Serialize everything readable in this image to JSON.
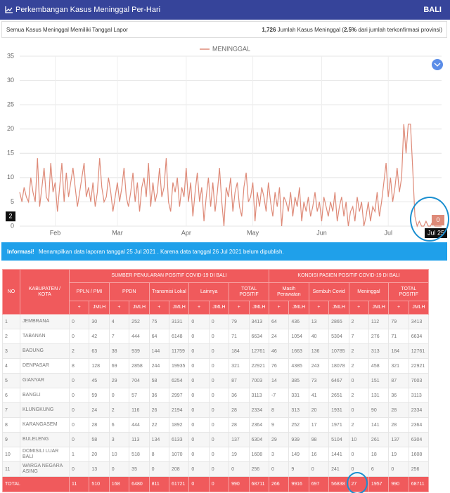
{
  "header": {
    "title": "Perkembangan Kasus Meninggal Per-Hari",
    "region": "BALI"
  },
  "summary": {
    "left": "Semua Kasus Meninggal Memiliki Tanggal Lapor",
    "total": "1,726",
    "total_text": "Jumlah Kasus Meninggal (",
    "percent": "2.5%",
    "percent_text": "dari jumlah terkonfirmasi provinsi)"
  },
  "chart_data": {
    "type": "line",
    "grid": true,
    "categories": [
      null,
      null,
      null,
      null,
      null,
      null,
      null,
      null,
      null,
      null,
      null,
      null,
      null,
      null,
      null,
      null,
      "Feb",
      null,
      null,
      null,
      null,
      null,
      null,
      null,
      null,
      null,
      null,
      null,
      null,
      null,
      null,
      null,
      null,
      null,
      null,
      null,
      null,
      null,
      null,
      null,
      null,
      null,
      null,
      null,
      "Mar",
      null,
      null,
      null,
      null,
      null,
      null,
      null,
      null,
      null,
      null,
      null,
      null,
      null,
      null,
      null,
      null,
      null,
      null,
      null,
      null,
      null,
      null,
      null,
      null,
      null,
      null,
      null,
      null,
      null,
      null,
      "Apr",
      null,
      null,
      null,
      null,
      null,
      null,
      null,
      null,
      null,
      null,
      null,
      null,
      null,
      null,
      null,
      null,
      null,
      null,
      null,
      null,
      null,
      null,
      null,
      null,
      null,
      null,
      null,
      null,
      null,
      "May",
      null,
      null,
      null,
      null,
      null,
      null,
      null,
      null,
      null,
      null,
      null,
      null,
      null,
      null,
      null,
      null,
      null,
      null,
      null,
      null,
      null,
      null,
      null,
      null,
      null,
      null,
      null,
      null,
      null,
      null,
      "Jun",
      null,
      null,
      null,
      null,
      null,
      null,
      null,
      null,
      null,
      null,
      null,
      null,
      null,
      null,
      null,
      null,
      null,
      null,
      null,
      null,
      null,
      null,
      null,
      null,
      null,
      null,
      null,
      null,
      null,
      "Jul",
      null,
      null,
      null,
      null,
      null,
      null,
      null,
      null,
      null,
      null,
      null,
      null,
      null,
      null,
      null,
      null,
      null,
      null,
      null,
      null,
      null,
      null,
      null,
      null
    ],
    "series": [
      {
        "name": "MENINGGAL",
        "color": "#de8a78",
        "values": [
          7,
          5,
          8,
          6,
          5,
          10,
          7,
          5,
          14,
          4,
          8,
          12,
          6,
          5,
          13,
          7,
          9,
          3,
          8,
          13,
          5,
          11,
          6,
          9,
          12,
          8,
          4,
          7,
          10,
          13,
          6,
          8,
          5,
          9,
          4,
          7,
          14,
          8,
          5,
          6,
          10,
          7,
          3,
          6,
          9,
          5,
          8,
          12,
          6,
          4,
          7,
          11,
          5,
          9,
          3,
          8,
          10,
          6,
          13,
          4,
          9,
          5,
          7,
          12,
          6,
          8,
          14,
          5,
          3,
          9,
          7,
          10,
          4,
          8,
          6,
          12,
          5,
          9,
          2,
          7,
          11,
          5,
          8,
          1,
          6,
          10,
          4,
          9,
          3,
          7,
          12,
          5,
          0,
          8,
          6,
          10,
          3,
          7,
          9,
          4,
          2,
          8,
          11,
          5,
          6,
          9,
          1,
          7,
          4,
          8,
          6,
          3,
          9,
          5,
          2,
          7,
          4,
          8,
          0,
          6,
          5,
          3,
          7,
          2,
          6,
          4,
          8,
          1,
          5,
          3,
          6,
          2,
          4,
          7,
          3,
          5,
          1,
          6,
          4,
          2,
          5,
          3,
          7,
          1,
          4,
          6,
          2,
          5,
          0,
          3,
          4,
          1,
          6,
          3,
          5,
          0,
          2,
          5,
          1,
          4,
          3,
          7,
          2,
          5,
          9,
          13,
          6,
          10,
          5,
          8,
          12,
          7,
          10,
          21,
          15,
          21,
          21,
          12,
          2,
          0,
          1,
          0,
          0,
          1,
          0,
          0,
          1,
          0,
          0,
          0,
          0
        ]
      }
    ],
    "ylim": [
      0,
      35
    ],
    "yticks": [
      0,
      5,
      10,
      15,
      20,
      25,
      30,
      35
    ],
    "tooltip": {
      "label": "Jul 25",
      "value": 0
    },
    "crosshair_y": 2
  },
  "info": {
    "label": "Informasi!",
    "text": "Menampilkan data laporan tanggal 25 Jul 2021 . Karena data tanggal 26 Jul 2021 belum dipublish."
  },
  "table": {
    "no": "NO",
    "name": "KABUPATEN / KOTA",
    "groups": [
      "SUMBER PENULARAN POSITIF COVID-19 DI BALI",
      "KONDISI PASIEN POSITIF COVID-19 DI BALI"
    ],
    "subheaders": [
      "PPLN / PMI",
      "PPDN",
      "Transmisi Lokal",
      "Lainnya",
      "TOTAL POSITIF",
      "Masih Perawatan",
      "Sembuh Covid",
      "Meninggal",
      "TOTAL POSITIF"
    ],
    "plus": "+",
    "jmlh": "JMLH",
    "rows": [
      [
        1,
        "JEMBRANA",
        0,
        30,
        4,
        252,
        75,
        3131,
        0,
        0,
        79,
        3413,
        64,
        436,
        13,
        2865,
        2,
        112,
        79,
        3413
      ],
      [
        2,
        "TABANAN",
        0,
        42,
        7,
        444,
        64,
        6148,
        0,
        0,
        71,
        6634,
        24,
        1054,
        40,
        5304,
        7,
        276,
        71,
        6634
      ],
      [
        3,
        "BADUNG",
        2,
        63,
        38,
        939,
        144,
        11759,
        0,
        0,
        184,
        12761,
        46,
        1663,
        136,
        10785,
        2,
        313,
        184,
        12761
      ],
      [
        4,
        "DENPASAR",
        8,
        128,
        69,
        2858,
        244,
        19935,
        0,
        0,
        321,
        22921,
        76,
        4385,
        243,
        18078,
        2,
        458,
        321,
        22921
      ],
      [
        5,
        "GIANYAR",
        0,
        45,
        29,
        704,
        58,
        6254,
        0,
        0,
        87,
        7003,
        14,
        385,
        73,
        6467,
        0,
        151,
        87,
        7003
      ],
      [
        6,
        "BANGLI",
        0,
        59,
        0,
        57,
        36,
        2997,
        0,
        0,
        36,
        3113,
        -7,
        331,
        41,
        2651,
        2,
        131,
        36,
        3113
      ],
      [
        7,
        "KLUNGKUNG",
        0,
        24,
        2,
        116,
        26,
        2194,
        0,
        0,
        28,
        2334,
        8,
        313,
        20,
        1931,
        0,
        90,
        28,
        2334
      ],
      [
        8,
        "KARANGASEM",
        0,
        28,
        6,
        444,
        22,
        1892,
        0,
        0,
        28,
        2364,
        9,
        252,
        17,
        1971,
        2,
        141,
        28,
        2364
      ],
      [
        9,
        "BULELENG",
        0,
        58,
        3,
        113,
        134,
        6133,
        0,
        0,
        137,
        6304,
        29,
        939,
        98,
        5104,
        10,
        261,
        137,
        6304
      ],
      [
        10,
        "DOMISILI LUAR BALI",
        1,
        20,
        10,
        518,
        8,
        1070,
        0,
        0,
        19,
        1608,
        3,
        149,
        16,
        1441,
        0,
        18,
        19,
        1608
      ],
      [
        11,
        "WARGA NEGARA ASING",
        0,
        13,
        0,
        35,
        0,
        208,
        0,
        0,
        0,
        256,
        0,
        9,
        0,
        241,
        0,
        6,
        0,
        256
      ]
    ],
    "total": {
      "label": "TOTAL",
      "values": [
        11,
        510,
        168,
        6480,
        811,
        61721,
        0,
        0,
        990,
        68711,
        266,
        9916,
        697,
        56838,
        27,
        1957,
        990,
        68711
      ]
    }
  }
}
